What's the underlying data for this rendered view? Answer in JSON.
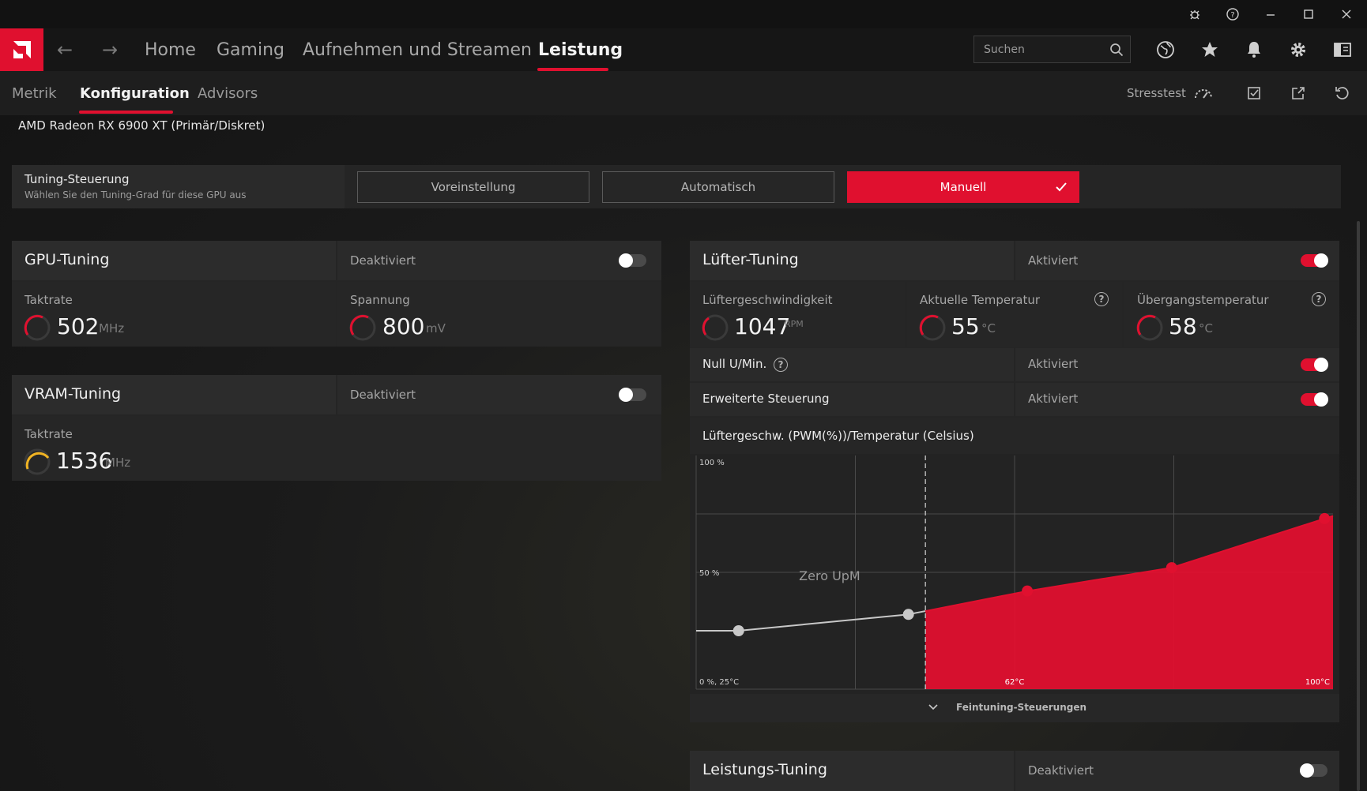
{
  "titlebar": {
    "icons": [
      "bug-icon",
      "help-icon",
      "minimize-icon",
      "maximize-icon",
      "close-icon"
    ]
  },
  "nav": {
    "back": "←",
    "forward": "→",
    "tabs": [
      "Home",
      "Gaming",
      "Aufnehmen und Streamen",
      "Leistung"
    ],
    "active_tab": "Leistung",
    "search_placeholder": "Suchen",
    "icons": [
      "globe-icon",
      "star-icon",
      "bell-icon",
      "gear-icon",
      "layout-icon"
    ]
  },
  "subnav": {
    "tabs": [
      "Metrik",
      "Konfiguration",
      "Advisors"
    ],
    "active_tab": "Konfiguration",
    "stresstest_label": "Stresstest",
    "icons": [
      "gauge-icon",
      "save-profile-icon",
      "export-icon",
      "reset-icon"
    ]
  },
  "gpu_name": "AMD Radeon RX 6900 XT (Primär/Diskret)",
  "tuning_control": {
    "title": "Tuning-Steuerung",
    "subtitle": "Wählen Sie den Tuning-Grad für diese GPU aus",
    "options": [
      "Voreinstellung",
      "Automatisch",
      "Manuell"
    ],
    "selected": "Manuell"
  },
  "gpu_tuning": {
    "title": "GPU-Tuning",
    "status": "Deaktiviert",
    "enabled": false,
    "clock_label": "Taktrate",
    "clock_value": "502",
    "clock_unit": "MHz",
    "voltage_label": "Spannung",
    "voltage_value": "800",
    "voltage_unit": "mV",
    "accent": "#e0102f"
  },
  "vram_tuning": {
    "title": "VRAM-Tuning",
    "status": "Deaktiviert",
    "enabled": false,
    "clock_label": "Taktrate",
    "clock_value": "1536",
    "clock_unit": "MHz",
    "accent": "#f0b323"
  },
  "fan_tuning": {
    "title": "Lüfter-Tuning",
    "status": "Aktiviert",
    "enabled": true,
    "fan_speed_label": "Lüftergeschwindigkeit",
    "fan_speed_value": "1047",
    "fan_speed_unit": "RPM",
    "current_temp_label": "Aktuelle Temperatur",
    "current_temp_value": "55",
    "current_temp_unit": "°C",
    "junction_temp_label": "Übergangstemperatur",
    "junction_temp_value": "58",
    "junction_temp_unit": "°C",
    "zero_rpm_label": "Null U/Min.",
    "zero_rpm_status": "Aktiviert",
    "advanced_label": "Erweiterte Steuerung",
    "advanced_status": "Aktiviert",
    "curve_title": "Lüftergeschw. (PWM(%))/Temperatur (Celsius)",
    "fine_tuning_label": "Feintuning-Steuerungen"
  },
  "chart_data": {
    "type": "line",
    "y_top_label": "100 %",
    "y_mid_label": "50 %",
    "origin_label": "0 %, 25°C",
    "x_mid_label": "62°C",
    "x_max_label": "100°C",
    "zero_rpm_label": "Zero UpM",
    "xlim": [
      25,
      100
    ],
    "ylim": [
      0,
      100
    ],
    "zero_rpm_threshold": 52,
    "points": [
      {
        "x": 30,
        "y": 25
      },
      {
        "x": 50,
        "y": 32
      },
      {
        "x": 64,
        "y": 42
      },
      {
        "x": 81,
        "y": 52
      },
      {
        "x": 99,
        "y": 73
      }
    ],
    "line_color": "#c8c8c8",
    "fill_color": "#e0102f"
  },
  "performance_tuning": {
    "title": "Leistungs-Tuning",
    "status": "Deaktiviert",
    "enabled": false
  }
}
